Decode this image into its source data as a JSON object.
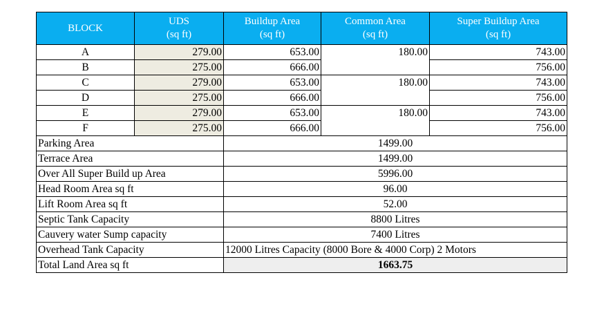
{
  "headers": {
    "block": "BLOCK",
    "uds": {
      "title": "UDS",
      "unit": "(sq ft)"
    },
    "buildup": {
      "title": "Buildup Area",
      "unit": "(sq ft)"
    },
    "common": {
      "title": "Common Area",
      "unit": "(sq ft)"
    },
    "super": {
      "title": "Super Buildup Area",
      "unit": "(sq ft)"
    }
  },
  "blocks": [
    {
      "name": "A",
      "uds": "279.00",
      "buildup": "653.00",
      "super": "743.00"
    },
    {
      "name": "B",
      "uds": "275.00",
      "buildup": "666.00",
      "super": "756.00"
    },
    {
      "name": "C",
      "uds": "279.00",
      "buildup": "653.00",
      "super": "743.00"
    },
    {
      "name": "D",
      "uds": "275.00",
      "buildup": "666.00",
      "super": "756.00"
    },
    {
      "name": "E",
      "uds": "279.00",
      "buildup": "653.00",
      "super": "743.00"
    },
    {
      "name": "F",
      "uds": "275.00",
      "buildup": "666.00",
      "super": "756.00"
    }
  ],
  "common_values": [
    "180.00",
    "180.00",
    "180.00"
  ],
  "summary": [
    {
      "label": "Parking Area",
      "value": "1499.00"
    },
    {
      "label": "Terrace Area",
      "value": "1499.00"
    },
    {
      "label": "Over All Super Build up Area",
      "value": "5996.00"
    },
    {
      "label": "Head Room Area sq ft",
      "value": "96.00"
    },
    {
      "label": "Lift Room Area sq ft",
      "value": "52.00"
    },
    {
      "label": "Septic Tank Capacity",
      "value": "8800 Litres"
    },
    {
      "label": "Cauvery water Sump capacity",
      "value": "7400 Litres"
    },
    {
      "label": "Overhead Tank Capacity",
      "value": "12000 Litres Capacity (8000 Bore & 4000 Corp) 2 Motors"
    },
    {
      "label": "Total Land Area sq ft",
      "value": "1663.75"
    }
  ]
}
